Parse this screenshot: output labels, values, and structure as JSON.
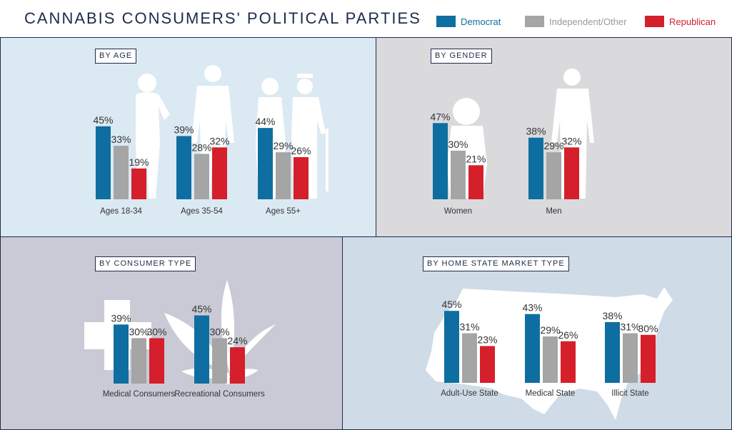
{
  "header": {
    "title": "CANNABIS CONSUMERS' POLITICAL PARTIES",
    "legend": [
      {
        "label": "Democrat",
        "color": "#0f6ea1"
      },
      {
        "label": "Independent/Other",
        "color": "#a5a5a5"
      },
      {
        "label": "Republican",
        "color": "#d51f2a"
      }
    ]
  },
  "chart_data": [
    {
      "type": "bar",
      "title": "BY AGE",
      "categories": [
        "Ages 18-34",
        "Ages 35-54",
        "Ages 55+"
      ],
      "series": [
        {
          "name": "Democrat",
          "values": [
            45,
            39,
            44
          ]
        },
        {
          "name": "Independent/Other",
          "values": [
            33,
            28,
            29
          ]
        },
        {
          "name": "Republican",
          "values": [
            19,
            32,
            26
          ]
        }
      ],
      "unit": "%"
    },
    {
      "type": "bar",
      "title": "BY GENDER",
      "categories": [
        "Women",
        "Men"
      ],
      "series": [
        {
          "name": "Democrat",
          "values": [
            47,
            38
          ]
        },
        {
          "name": "Independent/Other",
          "values": [
            30,
            29
          ]
        },
        {
          "name": "Republican",
          "values": [
            21,
            32
          ]
        }
      ],
      "unit": "%"
    },
    {
      "type": "bar",
      "title": "BY CONSUMER TYPE",
      "categories": [
        "Medical Consumers",
        "Recreational Consumers"
      ],
      "series": [
        {
          "name": "Democrat",
          "values": [
            39,
            45
          ]
        },
        {
          "name": "Independent/Other",
          "values": [
            30,
            30
          ]
        },
        {
          "name": "Republican",
          "values": [
            30,
            24
          ]
        }
      ],
      "unit": "%"
    },
    {
      "type": "bar",
      "title": "BY HOME STATE MARKET TYPE",
      "categories": [
        "Adult-Use State",
        "Medical State",
        "Illicit State"
      ],
      "series": [
        {
          "name": "Democrat",
          "values": [
            45,
            43,
            38
          ]
        },
        {
          "name": "Independent/Other",
          "values": [
            31,
            29,
            31
          ]
        },
        {
          "name": "Republican",
          "values": [
            23,
            26,
            30
          ]
        }
      ],
      "unit": "%"
    }
  ]
}
